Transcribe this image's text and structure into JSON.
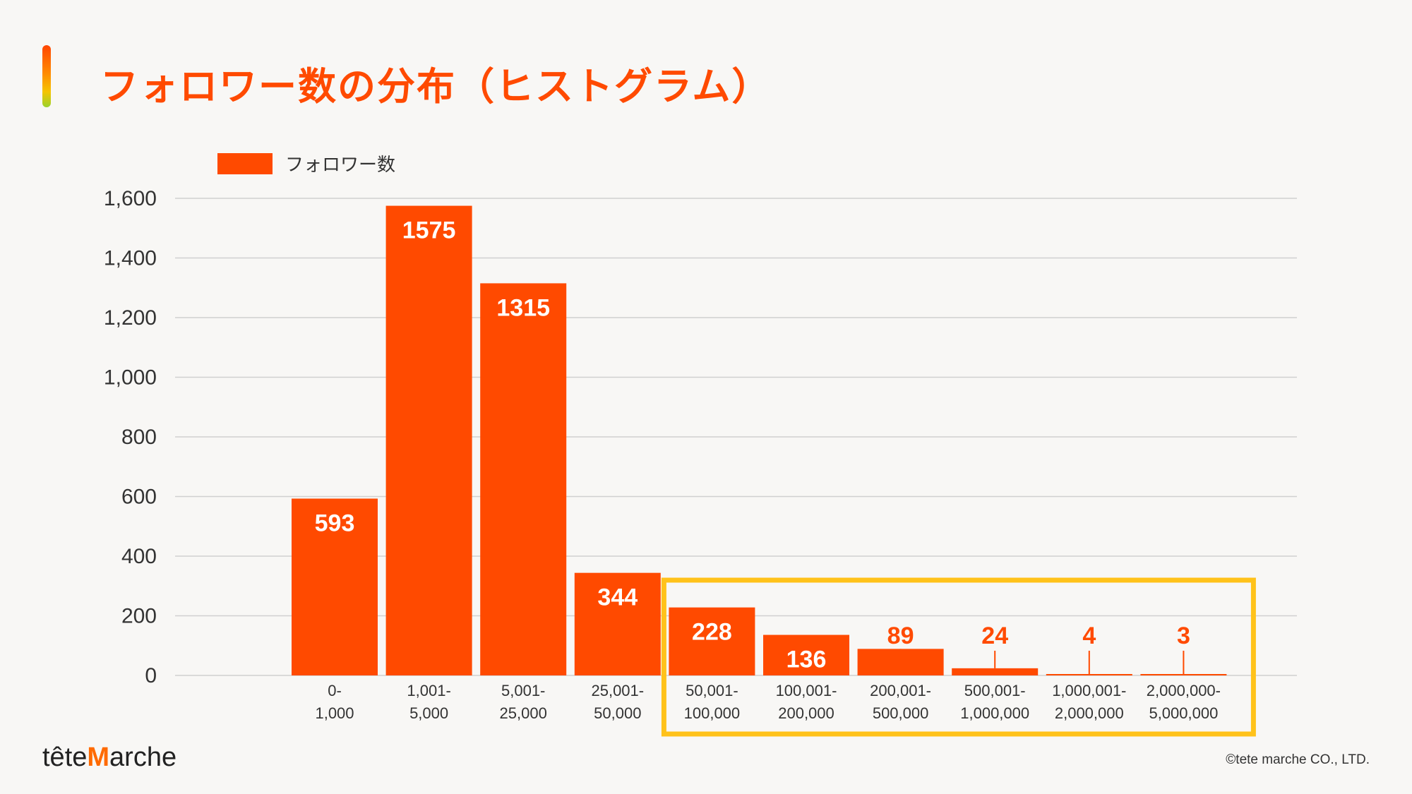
{
  "slide": {
    "title": "フォロワー数の分布（ヒストグラム）",
    "brand_prefix": "tête",
    "brand_mark": "M",
    "brand_suffix": "arche",
    "copyright": "©tete marche CO., LTD."
  },
  "colors": {
    "bar": "#ff4a00",
    "highlight_box": "#ffc21a",
    "grid": "#d0d0d0",
    "axis_text": "#333333"
  },
  "chart_data": {
    "type": "bar",
    "title": "",
    "xlabel": "",
    "ylabel": "",
    "legend_position": "top-left",
    "grid": true,
    "ylim": [
      0,
      1600
    ],
    "yticks": [
      "0",
      "200",
      "400",
      "600",
      "800",
      "1,000",
      "1,200",
      "1,400",
      "1,600"
    ],
    "categories": [
      [
        "0-",
        "1,000"
      ],
      [
        "1,001-",
        "5,000"
      ],
      [
        "5,001-",
        "25,000"
      ],
      [
        "25,001-",
        "50,000"
      ],
      [
        "50,001-",
        "100,000"
      ],
      [
        "100,001-",
        "200,000"
      ],
      [
        "200,001-",
        "500,000"
      ],
      [
        "500,001-",
        "1,000,000"
      ],
      [
        "1,000,001-",
        "2,000,000"
      ],
      [
        "2,000,000-",
        "5,000,000"
      ]
    ],
    "series": [
      {
        "name": "フォロワー数",
        "values": [
          593,
          1575,
          1315,
          344,
          228,
          136,
          89,
          24,
          4,
          3
        ]
      }
    ],
    "highlight_range": [
      4,
      9
    ]
  }
}
